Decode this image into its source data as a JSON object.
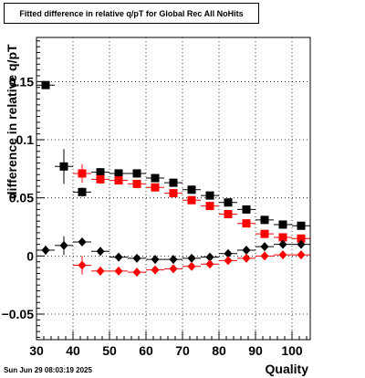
{
  "title": "Fitted difference in relative q/pT for Global Rec All NoHits",
  "datestamp": "Sun Jun 29 08:03:19 2025",
  "chart_data": {
    "type": "scatter",
    "title": "Fitted difference in relative q/pT for Global Rec All NoHits",
    "xlabel": "Quality",
    "ylabel": "difference in relative q/pT",
    "xlim": [
      30,
      105
    ],
    "ylim": [
      -0.072,
      0.188
    ],
    "grid": true,
    "x_ticks": [
      30,
      40,
      50,
      60,
      70,
      80,
      90,
      100
    ],
    "y_ticks": [
      -0.05,
      0,
      0.05,
      0.1,
      0.15
    ],
    "x_tick_labels": [
      "30",
      "40",
      "50",
      "60",
      "70",
      "80",
      "90",
      "100"
    ],
    "y_tick_labels": [
      "−0.05",
      "0",
      "0.05",
      "0.1",
      "0.15"
    ],
    "series": [
      {
        "marker": "square",
        "color": "#000000",
        "x": [
          32.5,
          37.5,
          42.5,
          47.5,
          52.5,
          57.5,
          62.5,
          67.5,
          72.5,
          77.5,
          82.5,
          87.5,
          92.5,
          97.5,
          102.5
        ],
        "y": [
          0.147,
          0.077,
          0.055,
          0.072,
          0.071,
          0.071,
          0.067,
          0.063,
          0.057,
          0.052,
          0.046,
          0.04,
          0.031,
          0.027,
          0.026
        ],
        "yerr": [
          0.003,
          0.015,
          0.004,
          0.003,
          0.003,
          0.002,
          0.002,
          0.002,
          0.002,
          0.002,
          0.002,
          0.002,
          0.002,
          0.002,
          0.002
        ]
      },
      {
        "marker": "square",
        "color": "#ff0000",
        "x": [
          42.5,
          47.5,
          52.5,
          57.5,
          62.5,
          67.5,
          72.5,
          77.5,
          82.5,
          87.5,
          92.5,
          97.5,
          102.5
        ],
        "y": [
          0.071,
          0.066,
          0.065,
          0.062,
          0.059,
          0.054,
          0.048,
          0.043,
          0.036,
          0.028,
          0.019,
          0.016,
          0.015
        ],
        "yerr": [
          0.008,
          0.004,
          0.003,
          0.003,
          0.002,
          0.002,
          0.002,
          0.002,
          0.002,
          0.002,
          0.002,
          0.002,
          0.002
        ]
      },
      {
        "marker": "diamond",
        "color": "#000000",
        "x": [
          32.5,
          37.5,
          42.5,
          47.5,
          52.5,
          57.5,
          62.5,
          67.5,
          72.5,
          77.5,
          82.5,
          87.5,
          92.5,
          97.5,
          102.5
        ],
        "y": [
          0.005,
          0.009,
          0.012,
          0.004,
          -0.001,
          -0.002,
          -0.003,
          -0.003,
          -0.002,
          -0.001,
          0.002,
          0.005,
          0.008,
          0.01,
          0.01
        ],
        "yerr": [
          0.004,
          0.008,
          0.003,
          0.002,
          0.002,
          0.002,
          0.002,
          0.002,
          0.002,
          0.002,
          0.002,
          0.002,
          0.002,
          0.002,
          0.002
        ]
      },
      {
        "marker": "diamond",
        "color": "#ff0000",
        "x": [
          42.5,
          47.5,
          52.5,
          57.5,
          62.5,
          67.5,
          72.5,
          77.5,
          82.5,
          87.5,
          92.5,
          97.5,
          102.5
        ],
        "y": [
          -0.008,
          -0.013,
          -0.013,
          -0.014,
          -0.012,
          -0.011,
          -0.009,
          -0.007,
          -0.004,
          -0.002,
          0.0,
          0.001,
          0.001
        ],
        "yerr": [
          0.008,
          0.004,
          0.003,
          0.003,
          0.002,
          0.002,
          0.002,
          0.002,
          0.002,
          0.002,
          0.002,
          0.002,
          0.002
        ]
      }
    ]
  }
}
